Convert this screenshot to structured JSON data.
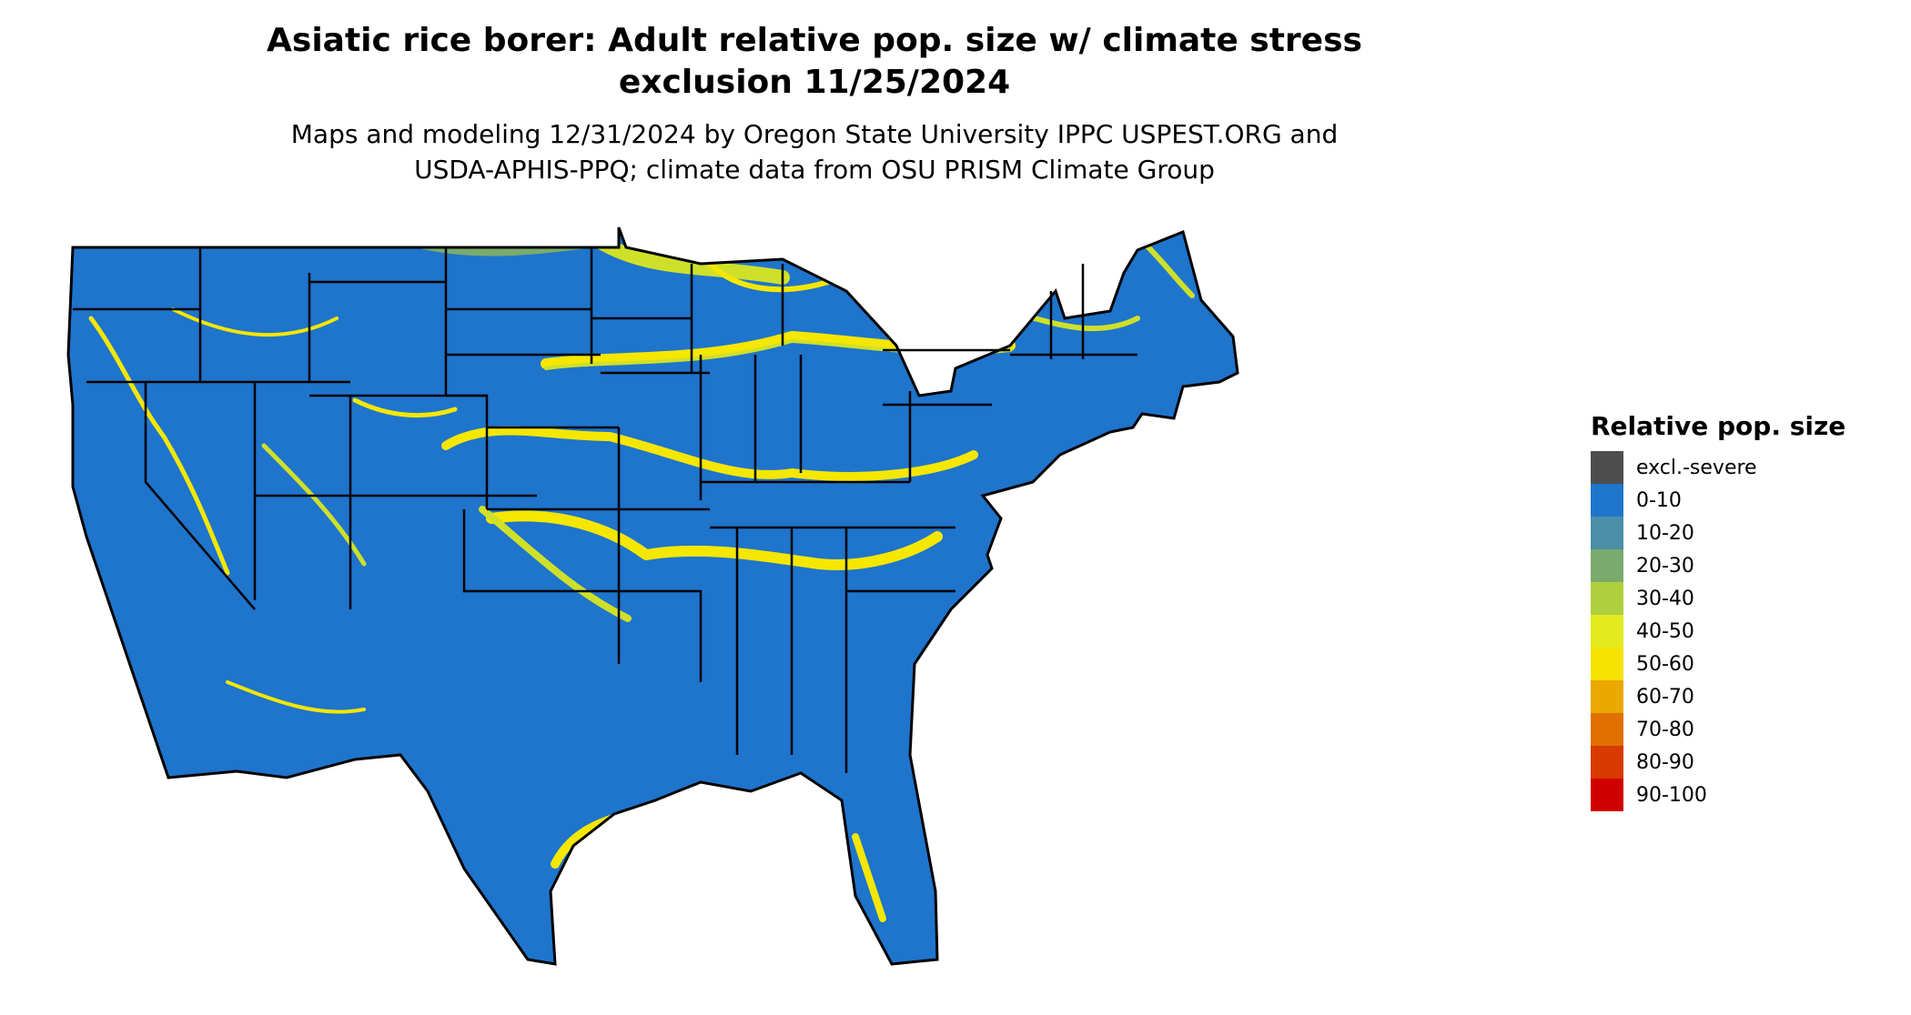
{
  "title_line1": "Asiatic rice borer: Adult relative pop. size w/ climate stress",
  "title_line2": "exclusion 11/25/2024",
  "subtitle_line1": "Maps and modeling 12/31/2024 by Oregon State University IPPC USPEST.ORG and",
  "subtitle_line2": "USDA-APHIS-PPQ; climate data from OSU PRISM Climate Group",
  "map": {
    "region": "Contiguous United States",
    "base_color": "#1f74cc",
    "state_border_color": "#000000",
    "highlight_colors": [
      "#f5e700",
      "#cfe02a",
      "#7aab6d",
      "#4b8fa8"
    ]
  },
  "legend": {
    "title": "Relative pop. size",
    "items": [
      {
        "label": "excl.-severe",
        "color": "#4d4d4d"
      },
      {
        "label": "0-10",
        "color": "#1f74cc"
      },
      {
        "label": "10-20",
        "color": "#4b8fa8"
      },
      {
        "label": "20-30",
        "color": "#7aab6d"
      },
      {
        "label": "30-40",
        "color": "#b0cf3f"
      },
      {
        "label": "40-50",
        "color": "#e3eb1f"
      },
      {
        "label": "50-60",
        "color": "#f5e200"
      },
      {
        "label": "60-70",
        "color": "#eaa800"
      },
      {
        "label": "70-80",
        "color": "#e07000"
      },
      {
        "label": "80-90",
        "color": "#d83a00"
      },
      {
        "label": "90-100",
        "color": "#d00000"
      }
    ]
  }
}
